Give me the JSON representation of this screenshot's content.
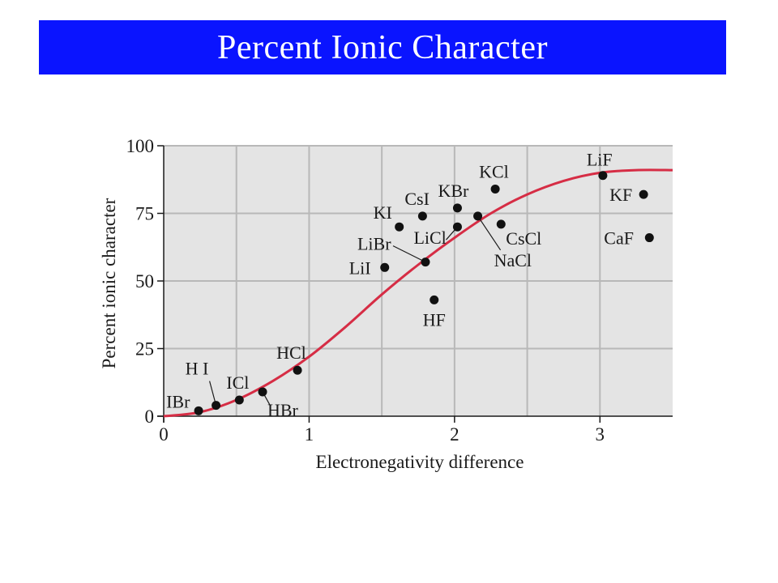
{
  "slide": {
    "title": "Percent Ionic Character"
  },
  "chart_data": {
    "type": "scatter",
    "xlabel": "Electronegativity difference",
    "ylabel": "Percent ionic character",
    "xlim": [
      0,
      3.5
    ],
    "ylim": [
      0,
      100
    ],
    "x_ticks": [
      0,
      1,
      2,
      3
    ],
    "y_ticks": [
      0,
      25,
      50,
      75,
      100
    ],
    "grid": true,
    "plot_background": "#e4e4e4",
    "curve_color": "#d62d45",
    "points": [
      {
        "label": "IBr",
        "x": 0.24,
        "y": 2
      },
      {
        "label": "H I",
        "x": 0.36,
        "y": 4
      },
      {
        "label": "ICl",
        "x": 0.52,
        "y": 6
      },
      {
        "label": "HBr",
        "x": 0.68,
        "y": 9
      },
      {
        "label": "HCl",
        "x": 0.92,
        "y": 17
      },
      {
        "label": "LiI",
        "x": 1.52,
        "y": 55
      },
      {
        "label": "KI",
        "x": 1.62,
        "y": 70
      },
      {
        "label": "LiBr",
        "x": 1.8,
        "y": 57
      },
      {
        "label": "CsI",
        "x": 1.78,
        "y": 74
      },
      {
        "label": "HF",
        "x": 1.86,
        "y": 43
      },
      {
        "label": "KBr",
        "x": 2.02,
        "y": 77
      },
      {
        "label": "LiCl",
        "x": 2.02,
        "y": 70
      },
      {
        "label": "NaCl",
        "x": 2.16,
        "y": 74
      },
      {
        "label": "KCl",
        "x": 2.28,
        "y": 84
      },
      {
        "label": "CsCl",
        "x": 2.32,
        "y": 71
      },
      {
        "label": "LiF",
        "x": 3.02,
        "y": 89
      },
      {
        "label": "KF",
        "x": 3.3,
        "y": 82
      },
      {
        "label": "CaF",
        "x": 3.34,
        "y": 66
      }
    ],
    "curve": {
      "x": [
        0,
        0.25,
        0.5,
        0.75,
        1.0,
        1.25,
        1.5,
        1.75,
        2.0,
        2.25,
        2.5,
        2.75,
        3.0,
        3.25,
        3.5
      ],
      "y": [
        0,
        1.5,
        6,
        13,
        22,
        33,
        45,
        56,
        66,
        75,
        82,
        87,
        90,
        91,
        91
      ]
    }
  }
}
